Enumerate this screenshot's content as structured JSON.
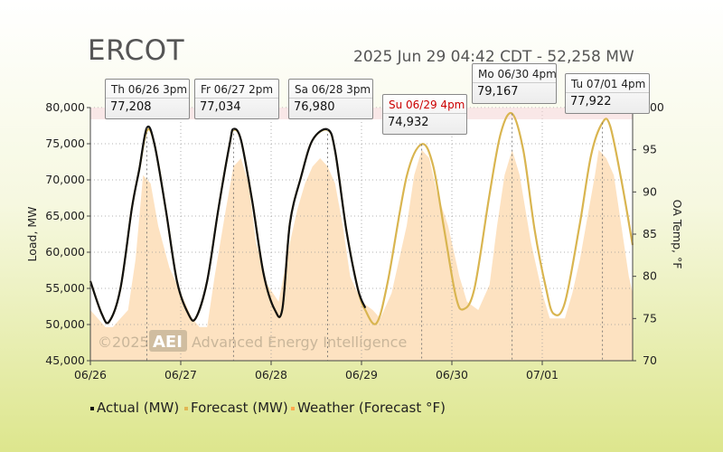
{
  "header": {
    "title": "ERCOT",
    "timestamp": "2025 Jun 29 04:42 CDT - 52,258 MW"
  },
  "tooltips": [
    {
      "label": "Th 06/26 3pm",
      "value": "77,208",
      "highlight": false
    },
    {
      "label": "Fr 06/27 2pm",
      "value": "77,034",
      "highlight": false
    },
    {
      "label": "Sa 06/28 3pm",
      "value": "76,980",
      "highlight": false
    },
    {
      "label": "Su 06/29 4pm",
      "value": "74,932",
      "highlight": true
    },
    {
      "label": "Mo 06/30 4pm",
      "value": "79,167",
      "highlight": false
    },
    {
      "label": "Tu 07/01 4pm",
      "value": "77,922",
      "highlight": false
    }
  ],
  "watermark": {
    "copyright": "©2025",
    "logo": "AEI",
    "company": "Advanced Energy Intelligence"
  },
  "legend": [
    {
      "label": "Actual (MW)",
      "color": "#111111"
    },
    {
      "label": "Forecast (MW)",
      "color": "#e0b652"
    },
    {
      "label": "Weather (Forecast °F)",
      "color": "#ffa64d"
    }
  ],
  "colors": {
    "actual": "#111111",
    "forecast": "#d9b550",
    "weather_fill": "#fde2c1",
    "grid": "#666666"
  },
  "chart_data": {
    "type": "line",
    "xlabel": "",
    "ylabel": "Load, MW",
    "y2label": "OA Temp, °F",
    "x_ticks": [
      "06/26",
      "06/27",
      "06/28",
      "06/29",
      "06/30",
      "07/01"
    ],
    "ylim": [
      45000,
      80000
    ],
    "y_ticks": [
      "45,000",
      "50,000",
      "55,000",
      "60,000",
      "65,000",
      "70,000",
      "75,000",
      "80,000"
    ],
    "y2lim": [
      70,
      100
    ],
    "y2_ticks": [
      "70",
      "75",
      "80",
      "85",
      "90",
      "95",
      "100"
    ],
    "x_unit": "hours from 06/26 00:00",
    "grid": true,
    "legend_position": "bottom",
    "series": [
      {
        "name": "Actual (MW)",
        "points": [
          [
            0,
            56000
          ],
          [
            3,
            51500
          ],
          [
            5,
            50400
          ],
          [
            8,
            55000
          ],
          [
            11,
            66000
          ],
          [
            13,
            71500
          ],
          [
            15,
            77208
          ],
          [
            17,
            75000
          ],
          [
            20,
            66000
          ],
          [
            23,
            56000
          ],
          [
            26,
            51500
          ],
          [
            28,
            50900
          ],
          [
            31,
            56000
          ],
          [
            34,
            66000
          ],
          [
            37,
            75000
          ],
          [
            38,
            77034
          ],
          [
            40,
            75500
          ],
          [
            43,
            67000
          ],
          [
            46,
            57000
          ],
          [
            49,
            52000
          ],
          [
            51,
            52200
          ],
          [
            53,
            64000
          ],
          [
            56,
            70500
          ],
          [
            59,
            75500
          ],
          [
            63,
            76980
          ],
          [
            65,
            74000
          ],
          [
            68,
            63000
          ],
          [
            71,
            55000
          ],
          [
            73,
            52300
          ]
        ]
      },
      {
        "name": "Forecast (MW)",
        "points": [
          [
            0,
            56000
          ],
          [
            3,
            51500
          ],
          [
            5,
            50400
          ],
          [
            8,
            55000
          ],
          [
            11,
            66000
          ],
          [
            13,
            71500
          ],
          [
            15,
            76800
          ],
          [
            17,
            75000
          ],
          [
            20,
            66000
          ],
          [
            23,
            56000
          ],
          [
            26,
            51500
          ],
          [
            28,
            50900
          ],
          [
            31,
            56000
          ],
          [
            34,
            66000
          ],
          [
            37,
            75000
          ],
          [
            38,
            76900
          ],
          [
            40,
            75500
          ],
          [
            43,
            67000
          ],
          [
            46,
            57000
          ],
          [
            49,
            52000
          ],
          [
            51,
            52200
          ],
          [
            53,
            64000
          ],
          [
            56,
            70500
          ],
          [
            59,
            75500
          ],
          [
            63,
            76900
          ],
          [
            65,
            74000
          ],
          [
            68,
            63000
          ],
          [
            71,
            55000
          ],
          [
            73,
            52000
          ],
          [
            76,
            50200
          ],
          [
            79,
            56000
          ],
          [
            84,
            70500
          ],
          [
            88,
            74932
          ],
          [
            91,
            72000
          ],
          [
            94,
            63000
          ],
          [
            97,
            54000
          ],
          [
            99,
            52100
          ],
          [
            102,
            55000
          ],
          [
            106,
            68000
          ],
          [
            109,
            76500
          ],
          [
            112,
            79167
          ],
          [
            115,
            74000
          ],
          [
            118,
            63000
          ],
          [
            121,
            55000
          ],
          [
            123,
            51500
          ],
          [
            126,
            53000
          ],
          [
            130,
            64000
          ],
          [
            133,
            73500
          ],
          [
            136,
            77922
          ],
          [
            138,
            77500
          ],
          [
            141,
            70000
          ],
          [
            144,
            61000
          ]
        ]
      },
      {
        "name": "Weather (Forecast °F)",
        "points": [
          [
            0,
            76
          ],
          [
            4,
            74
          ],
          [
            6,
            74
          ],
          [
            8,
            75
          ],
          [
            10,
            76
          ],
          [
            12,
            82
          ],
          [
            14,
            92
          ],
          [
            16,
            91
          ],
          [
            18,
            86
          ],
          [
            21,
            81
          ],
          [
            24,
            78
          ],
          [
            27,
            75
          ],
          [
            29,
            74
          ],
          [
            31,
            74
          ],
          [
            33,
            80
          ],
          [
            36,
            88
          ],
          [
            38,
            93
          ],
          [
            40,
            94
          ],
          [
            42,
            91
          ],
          [
            44,
            84
          ],
          [
            47,
            79
          ],
          [
            50,
            77
          ],
          [
            53,
            84
          ],
          [
            55,
            88
          ],
          [
            57,
            91
          ],
          [
            59,
            93
          ],
          [
            61,
            94
          ],
          [
            63,
            93
          ],
          [
            65,
            91
          ],
          [
            67,
            86
          ],
          [
            69,
            80
          ],
          [
            72,
            77
          ],
          [
            75,
            76
          ],
          [
            77,
            75
          ],
          [
            80,
            78
          ],
          [
            84,
            86
          ],
          [
            86,
            92
          ],
          [
            88,
            95
          ],
          [
            90,
            94
          ],
          [
            92,
            90
          ],
          [
            95,
            86
          ],
          [
            98,
            80
          ],
          [
            100,
            77
          ],
          [
            103,
            76
          ],
          [
            106,
            79
          ],
          [
            108,
            86
          ],
          [
            110,
            92
          ],
          [
            112,
            95
          ],
          [
            114,
            92
          ],
          [
            117,
            84
          ],
          [
            120,
            78
          ],
          [
            122,
            75
          ],
          [
            124,
            75
          ],
          [
            126,
            75
          ],
          [
            128,
            78
          ],
          [
            130,
            82
          ],
          [
            132,
            87
          ],
          [
            134,
            92
          ],
          [
            135,
            95
          ],
          [
            137,
            94
          ],
          [
            139,
            92
          ],
          [
            141,
            86
          ],
          [
            143,
            80
          ],
          [
            144,
            78
          ]
        ]
      }
    ]
  }
}
